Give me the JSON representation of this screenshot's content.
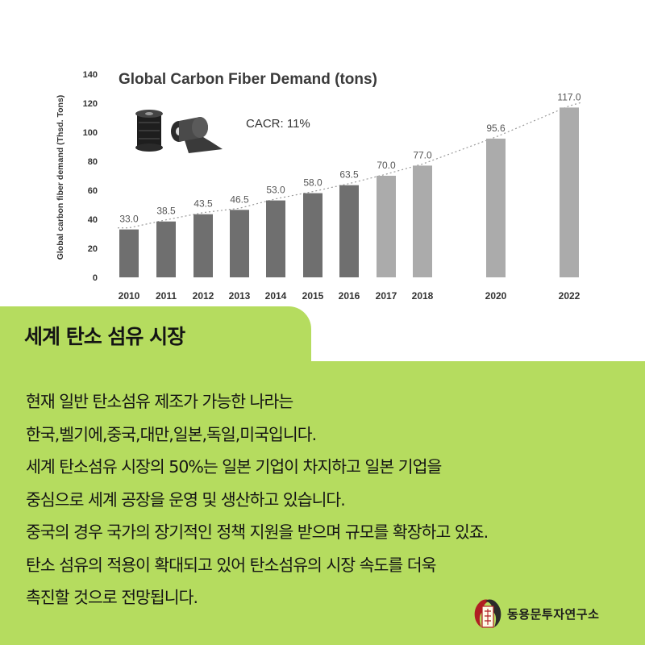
{
  "chart_data": {
    "type": "bar",
    "title": "Global Carbon Fiber Demand (tons)",
    "ylabel": "Global carbon fiber demand (Thsd. Tons)",
    "xlabel": "",
    "annotation": "CACR: 11%",
    "categories": [
      "2010",
      "2011",
      "2012",
      "2013",
      "2014",
      "2015",
      "2016",
      "2017",
      "2018",
      "2020",
      "2022"
    ],
    "values": [
      33.0,
      38.5,
      43.5,
      46.5,
      53.0,
      58.0,
      63.5,
      70.0,
      77.0,
      95.6,
      117.0
    ],
    "value_labels": [
      "33.0",
      "38.5",
      "43.5",
      "46.5",
      "53.0",
      "58.0",
      "63.5",
      "70.0",
      "77.0",
      "95.6",
      "117.0"
    ],
    "y_ticks": [
      0,
      20,
      40,
      60,
      80,
      100,
      120,
      140
    ],
    "ylim": [
      0,
      140
    ],
    "grid": false,
    "trendline": "dotted",
    "colors": {
      "historical": "#6f6f6f",
      "forecast": "#ababab",
      "text": "#333333"
    }
  },
  "section": {
    "title": "세계 탄소 섬유 시장",
    "lines": [
      "현재 일반 탄소섬유 제조가 가능한 나라는",
      "한국,벨기에,중국,대만,일본,독일,미국입니다.",
      "세계 탄소섬유 시장의 50%는 일본 기업이 차지하고 일본 기업을",
      "중심으로 세계 공장을 운영 및 생산하고 있습니다.",
      "중국의 경우 국가의 장기적인 정책 지원을 받으며 규모를 확장하고 있죠.",
      "탄소 섬유의 적용이 확대되고 있어 탄소섬유의 시장 속도를 더욱",
      "촉진할 것으로 전망됩니다."
    ]
  },
  "brand": {
    "name": "동용문투자연구소"
  },
  "colors": {
    "accent": "#b5dc5f",
    "text": "#141414"
  }
}
